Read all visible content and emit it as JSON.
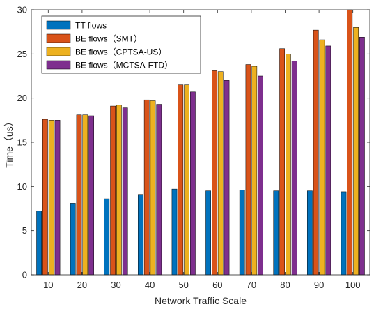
{
  "chart_data": {
    "type": "bar",
    "title": "",
    "xlabel": "Network Traffic Scale",
    "ylabel": "Time（us）",
    "categories": [
      "10",
      "20",
      "30",
      "40",
      "50",
      "60",
      "70",
      "80",
      "90",
      "100"
    ],
    "ylim": [
      0,
      30
    ],
    "yticks": [
      0,
      5,
      10,
      15,
      20,
      25,
      30
    ],
    "grid": false,
    "legend_position": "top-left",
    "series": [
      {
        "name": "TT flows",
        "color": "#0072BD",
        "values": [
          7.2,
          8.1,
          8.6,
          9.1,
          9.7,
          9.5,
          9.6,
          9.5,
          9.5,
          9.4
        ]
      },
      {
        "name": "BE flows（SMT）",
        "color": "#D95319",
        "values": [
          17.6,
          18.1,
          19.1,
          19.8,
          21.5,
          23.1,
          23.8,
          25.6,
          27.7,
          30.0
        ]
      },
      {
        "name": "BE flows（CPTSA-US）",
        "color": "#EDB120",
        "values": [
          17.5,
          18.1,
          19.2,
          19.7,
          21.5,
          23.0,
          23.6,
          25.0,
          26.6,
          28.0
        ]
      },
      {
        "name": "BE flows（MCTSA-FTD）",
        "color": "#7E2F8E",
        "values": [
          17.5,
          18.0,
          18.9,
          19.3,
          20.7,
          22.0,
          22.5,
          24.2,
          25.9,
          26.9
        ]
      }
    ]
  }
}
